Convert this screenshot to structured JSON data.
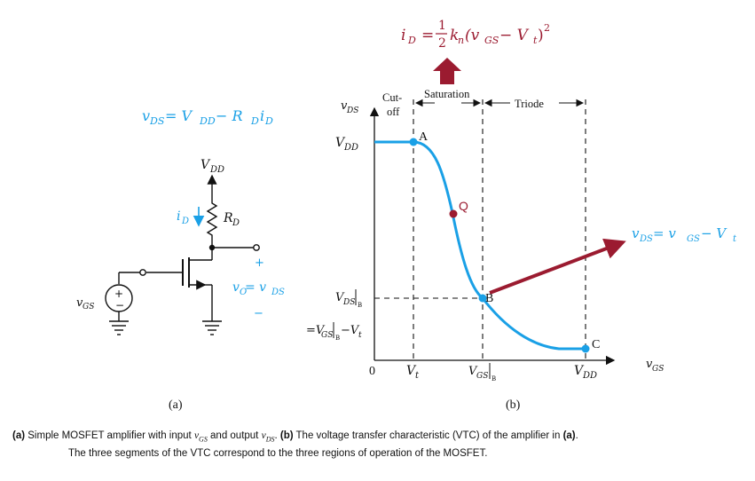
{
  "colors": {
    "blue": "#1aa0e6",
    "maroon": "#9b1b30",
    "black": "#111111"
  },
  "formulas": {
    "id_lhs": "i",
    "id_lhs_sub": "D",
    "id_eq": "=",
    "id_frac_num": "1",
    "id_frac_den": "2",
    "id_rhs": "k",
    "id_rhs_sub": "n",
    "id_rhs_rest": "(v",
    "id_rhs_sub2": "GS",
    "id_rhs_minus": " − V",
    "id_rhs_sub3": "t",
    "id_rhs_close": ")",
    "id_rhs_exp": "2",
    "vds_left": "v",
    "vds_left_sub": "DS",
    "vds_left_eq": " = V",
    "vds_left_sub2": "DD",
    "vds_left_minus": " − R",
    "vds_left_sub3": "D",
    "vds_left_i": "i",
    "vds_left_sub4": "D",
    "vds_right": "v",
    "vds_right_sub": "DS",
    "vds_right_eq": " = v",
    "vds_right_sub2": "GS",
    "vds_right_minus": " − V",
    "vds_right_sub3": "t"
  },
  "circuit": {
    "vdd": "V",
    "vdd_sub": "DD",
    "id": "i",
    "id_sub": "D",
    "rd": "R",
    "rd_sub": "D",
    "plus": "+",
    "minus": "−",
    "vo": "v",
    "vo_sub": "O",
    "vo_eq": " = v",
    "vo_sub2": "DS",
    "vgs": "v",
    "vgs_sub": "GS",
    "src_plus": "+",
    "src_minus": "−",
    "label": "(a)"
  },
  "vtc": {
    "y_axis": "v",
    "y_axis_sub": "DS",
    "x_axis": "v",
    "x_axis_sub": "GS",
    "origin": "0",
    "vt_tick": "V",
    "vt_tick_sub": "t",
    "vgsb_tick": "V",
    "vgsb_tick_sub": "GS",
    "vgsb_tick_sub2": "B",
    "vdd_tick": "V",
    "vdd_tick_sub": "DD",
    "vdd_ylabel": "V",
    "vdd_ylabel_sub": "DD",
    "vdsb_ylabel": "V",
    "vdsb_ylabel_sub": "DS",
    "vdsb_ylabel_sub2": "B",
    "vdsb_ylabel2": "=V",
    "vdsb_ylabel2_sub": "GS",
    "vdsb_ylabel2_sub2": "B",
    "vdsb_ylabel2_rest": "−V",
    "vdsb_ylabel2_sub3": "t",
    "region_cutoff_1": "Cut-",
    "region_cutoff_2": "off",
    "region_saturation": "Saturation",
    "region_triode": "Triode",
    "point_a": "A",
    "point_q": "Q",
    "point_b": "B",
    "point_c": "C",
    "label": "(b)"
  },
  "caption": {
    "part_a": "(a)",
    "text1": " Simple MOSFET amplifier with input ",
    "vgs": "v",
    "vgs_sub": "GS",
    "text2": " and output ",
    "vds": "v",
    "vds_sub": "DS",
    "text3": ". ",
    "part_b": "(b)",
    "text4": " The voltage transfer characteristic (VTC) of the amplifier in ",
    "part_a2": "(a)",
    "text5": ".",
    "line2": "The three segments of the VTC correspond to the three regions of operation of the MOSFET."
  }
}
